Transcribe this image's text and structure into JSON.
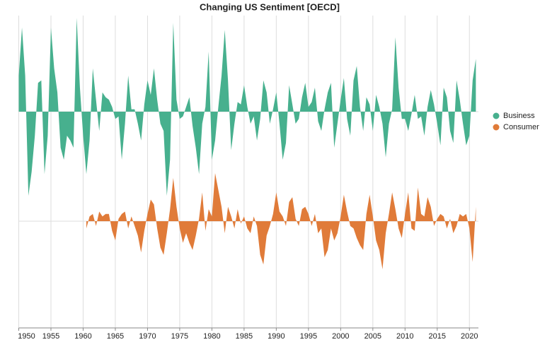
{
  "chart_data": {
    "type": "horizon-area",
    "title": "Changing US Sentiment [OECD]",
    "x": [
      1950,
      1950.5,
      1951,
      1951.5,
      1952,
      1952.5,
      1953,
      1953.5,
      1954,
      1954.5,
      1955,
      1955.5,
      1956,
      1956.5,
      1957,
      1957.5,
      1958,
      1958.5,
      1959,
      1959.5,
      1960,
      1960.5,
      1961,
      1961.5,
      1962,
      1962.5,
      1963,
      1963.5,
      1964,
      1964.5,
      1965,
      1965.5,
      1966,
      1966.5,
      1967,
      1967.5,
      1968,
      1968.5,
      1969,
      1969.5,
      1970,
      1970.5,
      1971,
      1971.5,
      1972,
      1972.5,
      1973,
      1973.5,
      1974,
      1974.5,
      1975,
      1975.5,
      1976,
      1976.5,
      1977,
      1977.5,
      1978,
      1978.5,
      1979,
      1979.5,
      1980,
      1980.5,
      1981,
      1981.5,
      1982,
      1982.5,
      1983,
      1983.5,
      1984,
      1984.5,
      1985,
      1985.5,
      1986,
      1986.5,
      1987,
      1987.5,
      1988,
      1988.5,
      1989,
      1989.5,
      1990,
      1990.5,
      1991,
      1991.5,
      1992,
      1992.5,
      1993,
      1993.5,
      1994,
      1994.5,
      1995,
      1995.5,
      1996,
      1996.5,
      1997,
      1997.5,
      1998,
      1998.5,
      1999,
      1999.5,
      2000,
      2000.5,
      2001,
      2001.5,
      2002,
      2002.5,
      2003,
      2003.5,
      2004,
      2004.5,
      2005,
      2005.5,
      2006,
      2006.5,
      2007,
      2007.5,
      2008,
      2008.5,
      2009,
      2009.5,
      2010,
      2010.5,
      2011,
      2011.5,
      2012,
      2012.5,
      2013,
      2013.5,
      2014,
      2014.5,
      2015,
      2015.5,
      2016,
      2016.5,
      2017,
      2017.5,
      2018,
      2018.5,
      2019,
      2019.5,
      2020,
      2020.5,
      2021
    ],
    "series": [
      {
        "name": "Business",
        "color": "#47b08e",
        "values": [
          1.5,
          3.5,
          1.5,
          -3.5,
          -2.5,
          -1,
          1.2,
          1.3,
          -2.6,
          -1,
          3.5,
          1.8,
          0.8,
          -1.5,
          -2,
          -1,
          -1.2,
          -1.5,
          3.9,
          1,
          -1,
          -2.6,
          -1.2,
          1.8,
          0.5,
          -0.8,
          0.8,
          0.6,
          0.5,
          0.2,
          -0.3,
          -0.2,
          -2,
          -0.5,
          1.5,
          0.1,
          0.1,
          -0.5,
          -1.2,
          0.3,
          1.3,
          0.7,
          1.8,
          0.5,
          -0.5,
          -0.8,
          -3.5,
          -2,
          3.7,
          0.5,
          -0.3,
          -0.2,
          0.2,
          0.6,
          -0.6,
          -1.5,
          -2.6,
          -0.5,
          0.2,
          2.5,
          -2,
          -1.2,
          0.2,
          1.5,
          3.4,
          1.3,
          -1.6,
          -0.5,
          0.4,
          0.3,
          1.1,
          0.2,
          -0.5,
          -0.2,
          -1.2,
          -0.3,
          1.3,
          0.8,
          -0.5,
          0.1,
          0.8,
          -0.5,
          -2,
          -1.3,
          1.1,
          0.3,
          -0.5,
          -0.3,
          0.6,
          1.2,
          0.2,
          0.4,
          1,
          -0.4,
          -0.8,
          0.1,
          0.8,
          1.2,
          -1.5,
          -0.5,
          0.5,
          1.4,
          -0.3,
          -1,
          1.3,
          1.9,
          0.2,
          -0.8,
          0.6,
          0.3,
          -0.8,
          0.7,
          0.2,
          -0.5,
          -1.9,
          -0.5,
          0.1,
          3.1,
          1,
          -0.3,
          -0.3,
          -0.8,
          -0.1,
          0.7,
          -0.3,
          -0.2,
          -1,
          0.2,
          0.9,
          0.3,
          -0.5,
          -1.4,
          1,
          0.6,
          -0.8,
          -1.3,
          1.3,
          0.5,
          -0.5,
          -1.4,
          -1,
          1.3,
          2.2
        ]
      },
      {
        "name": "Consumer",
        "color": "#e07b39",
        "values": [
          null,
          null,
          null,
          null,
          null,
          null,
          null,
          null,
          null,
          null,
          null,
          null,
          null,
          null,
          null,
          null,
          null,
          null,
          null,
          null,
          null,
          -0.3,
          0.2,
          0.3,
          -0.2,
          0.4,
          0.2,
          0.3,
          0.3,
          -0.4,
          -0.8,
          0.1,
          0.3,
          0.4,
          -0.3,
          0.2,
          -0.2,
          -0.6,
          -1.3,
          -0.4,
          0.3,
          0.9,
          0.7,
          -0.3,
          -1.1,
          -1.4,
          -0.5,
          0.5,
          1.8,
          0.6,
          -0.3,
          -0.9,
          -0.5,
          -0.9,
          -1.2,
          -0.6,
          0.1,
          1.2,
          -0.4,
          0.5,
          0.2,
          2,
          1.3,
          0.6,
          -0.5,
          0.6,
          0.2,
          -0.3,
          0.5,
          -0.1,
          0.2,
          -0.3,
          -0.5,
          0.2,
          -0.2,
          -1.4,
          -1.8,
          -0.6,
          -0.2,
          0.3,
          1.2,
          0.4,
          0.2,
          -0.2,
          0.8,
          1,
          0.1,
          -0.2,
          0.5,
          0.6,
          0.3,
          -0.2,
          0.3,
          -0.5,
          -0.3,
          -1.5,
          -1.2,
          -0.3,
          -0.8,
          -0.5,
          0.2,
          1.1,
          0.4,
          -0.2,
          -0.3,
          -0.7,
          -1,
          -1.2,
          0.3,
          1.1,
          0.2,
          -0.8,
          -1.2,
          -2,
          -0.5,
          0.3,
          1.2,
          0.5,
          -0.3,
          -0.7,
          0.3,
          1.2,
          -0.3,
          -0.4,
          1.4,
          0.3,
          0.2,
          1,
          0.6,
          -0.2,
          0.1,
          0.3,
          0.2,
          -0.3,
          0.1,
          -0.5,
          -0.2,
          0.3,
          0.2,
          0.3,
          -0.3,
          -1.7,
          0.6
        ]
      }
    ],
    "xlim": [
      1950,
      2021.4
    ],
    "xticks": [
      1950,
      1955,
      1960,
      1965,
      1970,
      1975,
      1980,
      1985,
      1990,
      1995,
      2000,
      2005,
      2010,
      2015,
      2020
    ],
    "ylim": [
      -4,
      4
    ],
    "grid": true,
    "legend": "right"
  }
}
